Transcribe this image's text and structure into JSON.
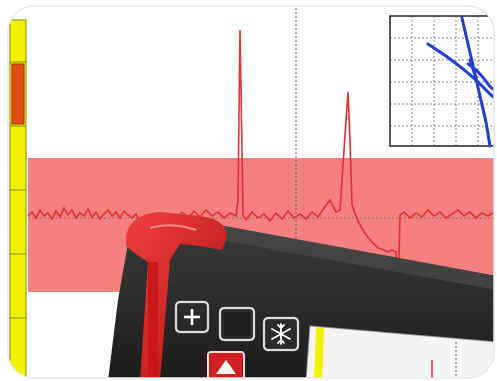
{
  "screen": {
    "background": "#ffffff",
    "band_color": "#f58080",
    "signal_color": "#e53030",
    "yellow_bar_color": "#f2f200",
    "inset_trace_color": "#1f3fd6",
    "grid_color": "#555555"
  },
  "device": {
    "body_color": "#2b2b2b",
    "trim_color": "#d21f1f",
    "buttons": [
      {
        "name": "plus-button",
        "icon": "plus-icon",
        "glyph": "+"
      },
      {
        "name": "square-button",
        "icon": "stop-icon",
        "glyph": ""
      },
      {
        "name": "freeze-button",
        "icon": "snowflake-icon",
        "glyph": "❄"
      }
    ],
    "arrow_button_icon": "up-arrow-icon"
  }
}
